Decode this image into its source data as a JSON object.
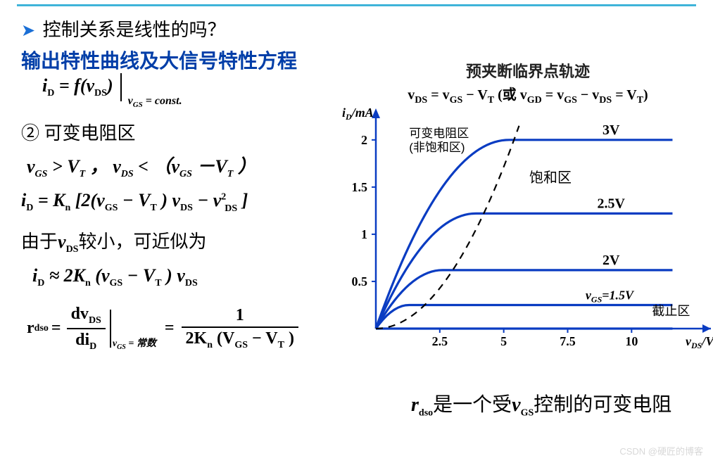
{
  "top_question": "控制关系是线性的吗？",
  "section_title": "输出特性曲线及大信号特性方程",
  "eq_fn_left": "i",
  "eq_fn": " = f(v",
  "eq_fn_cond": "v",
  "eq_fn_cond2": " = const.",
  "region_number": "②",
  "region_name": "可变电阻区",
  "cond_text1": "v",
  "cond_text2": " > V",
  "cond_text3": " ，  v",
  "cond_text4": " < （v",
  "cond_text5": "－V",
  "cond_text6": "）",
  "main_eq_lead": "i",
  "main_eq_body": " = K",
  "main_eq_rest": " [2(v",
  "main_eq_rest2": " − V",
  "main_eq_rest3": ") v",
  "main_eq_rest4": " − v",
  "main_eq_rest5": "]",
  "approx_line": "由于",
  "approx_var": "v",
  "approx_line2": "较小，可近似为",
  "approx_eq_lead": "i",
  "approx_eq": " ≈ 2K",
  "approx_eq2": " (v",
  "approx_eq3": " − V",
  "approx_eq4": ") v",
  "rdso_sym": "r",
  "rdso_eq": " = ",
  "rdso_num": "dv",
  "rdso_den": "di",
  "rdso_cond": "v",
  "rdso_cond2": " = 常数",
  "rdso_rhs_num": "1",
  "rdso_rhs_den1": "2K",
  "rdso_rhs_den2": " (V",
  "rdso_rhs_den3": " − V",
  "rdso_rhs_den4": ")",
  "pinch_title": "预夹断临界点轨迹",
  "pinch_eq_a": "v",
  "pinch_eq_b": " = v",
  "pinch_eq_c": " − V",
  "pinch_eq_or": "(或 ",
  "pinch_eq_d": "v",
  "pinch_eq_e": " = v",
  "pinch_eq_f": " − v",
  "pinch_eq_g": " = V",
  "chart": {
    "y_axis_label": "i_D/mA",
    "x_axis_label": "v_DS/V",
    "x_ticks": [
      2.5,
      5,
      7.5,
      10
    ],
    "y_ticks": [
      0.5,
      1,
      1.5,
      2
    ],
    "x_range": [
      0,
      12
    ],
    "y_range": [
      0,
      2.2
    ],
    "curve_color": "#0a3cc2",
    "axis_color": "#0a3cc2",
    "dash_color": "#000000",
    "tick_font_size": 18,
    "curve_width": 3.2,
    "curves": [
      {
        "vgs_label": "3V",
        "sat_id": 2.0,
        "knee_x": 5.2
      },
      {
        "vgs_label": "2.5V",
        "sat_id": 1.22,
        "knee_x": 3.9
      },
      {
        "vgs_label": "2V",
        "sat_id": 0.62,
        "knee_x": 2.6
      },
      {
        "vgs_label": "v_GS=1.5V",
        "sat_id": 0.25,
        "knee_x": 1.3
      }
    ],
    "region_labels": {
      "triode1": "可变电阻区",
      "triode2": "(非饱和区)",
      "saturation": "饱和区",
      "cutoff": "截止区"
    },
    "boundary_parabola": {
      "from": [
        0,
        0
      ],
      "to": [
        5.6,
        2.15
      ]
    }
  },
  "rdso_note1": "r",
  "rdso_note2": "是一个受",
  "rdso_note3": "v",
  "rdso_note4": "控制的可变电阻",
  "watermark": "CSDN @硬匠的博客"
}
